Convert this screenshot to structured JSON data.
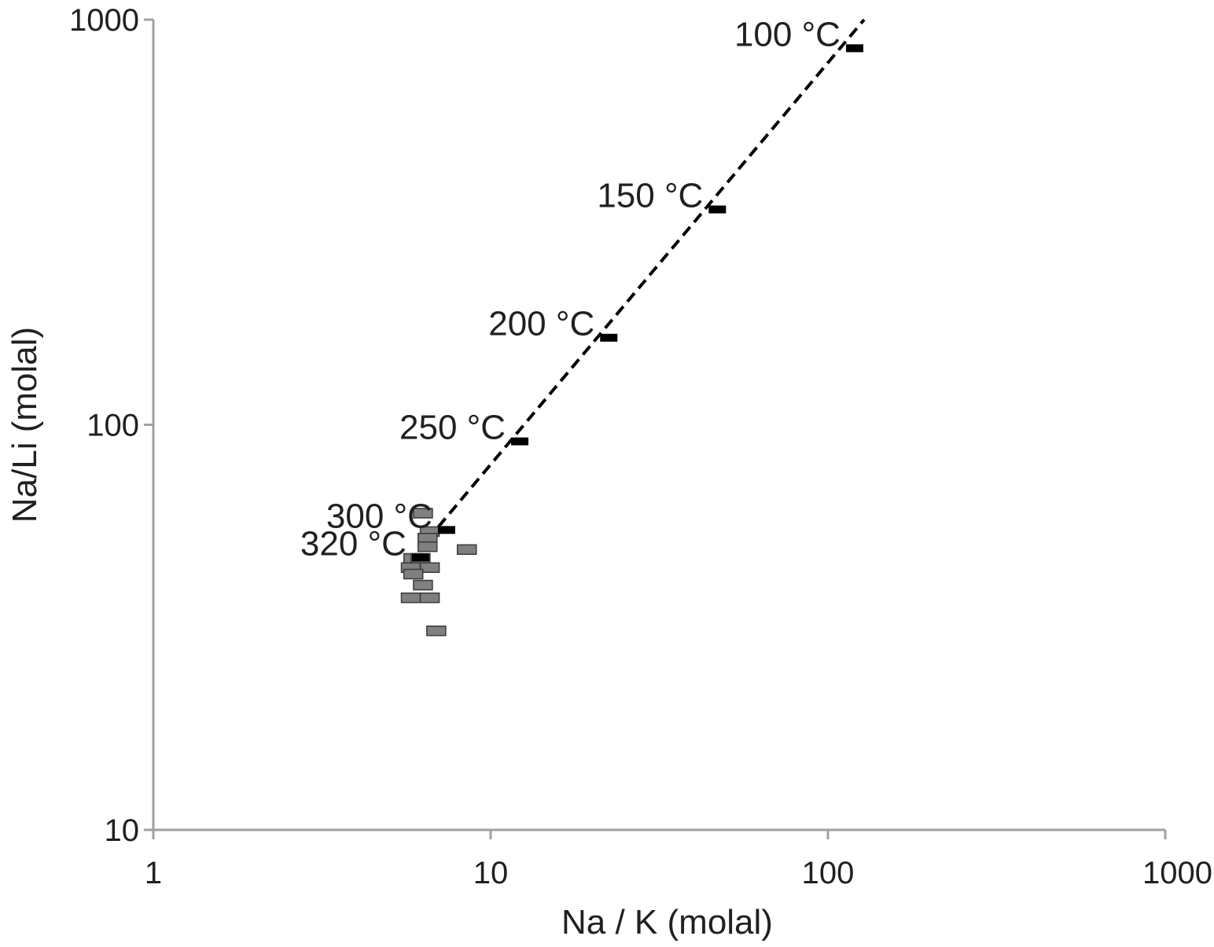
{
  "chart_data": {
    "type": "scatter",
    "xlabel": "Na / K (molal)",
    "ylabel": "Na/Li (molal)",
    "x_scale": "log",
    "y_scale": "log",
    "xlim": [
      1,
      1000
    ],
    "ylim": [
      10,
      1000
    ],
    "x_ticks": [
      "1",
      "10",
      "100",
      "1000"
    ],
    "y_ticks": [
      "10",
      "100",
      "1000"
    ],
    "grid": false,
    "legend": "none",
    "series": [
      {
        "marker": "rectangle",
        "color": "#808080",
        "points": [
          {
            "x": 6.3,
            "y": 60.5
          },
          {
            "x": 6.6,
            "y": 54.5
          },
          {
            "x": 6.5,
            "y": 52.5
          },
          {
            "x": 6.5,
            "y": 50.0
          },
          {
            "x": 8.5,
            "y": 49.2
          },
          {
            "x": 5.9,
            "y": 46.8
          },
          {
            "x": 6.2,
            "y": 46.8
          },
          {
            "x": 5.8,
            "y": 44.4
          },
          {
            "x": 6.6,
            "y": 44.4
          },
          {
            "x": 5.9,
            "y": 42.8
          },
          {
            "x": 6.3,
            "y": 40.2
          },
          {
            "x": 5.8,
            "y": 37.4
          },
          {
            "x": 6.6,
            "y": 37.4
          },
          {
            "x": 6.9,
            "y": 31.0
          }
        ]
      },
      {
        "marker": "dash",
        "color": "#000000",
        "points": [
          {
            "x": 120,
            "y": 850,
            "label": "100 °C"
          },
          {
            "x": 47,
            "y": 340,
            "label": "150 °C"
          },
          {
            "x": 22.4,
            "y": 164,
            "label": "200 °C"
          },
          {
            "x": 12.2,
            "y": 91,
            "label": "250 °C"
          },
          {
            "x": 7.4,
            "y": 55,
            "label": "300 °C"
          },
          {
            "x": 6.2,
            "y": 47,
            "label": "320 °C"
          }
        ]
      }
    ],
    "trendline": {
      "style": "dashed",
      "color": "#000000",
      "from": {
        "x": 7.0,
        "y": 56
      },
      "to": {
        "x": 128,
        "y": 1000
      }
    }
  }
}
